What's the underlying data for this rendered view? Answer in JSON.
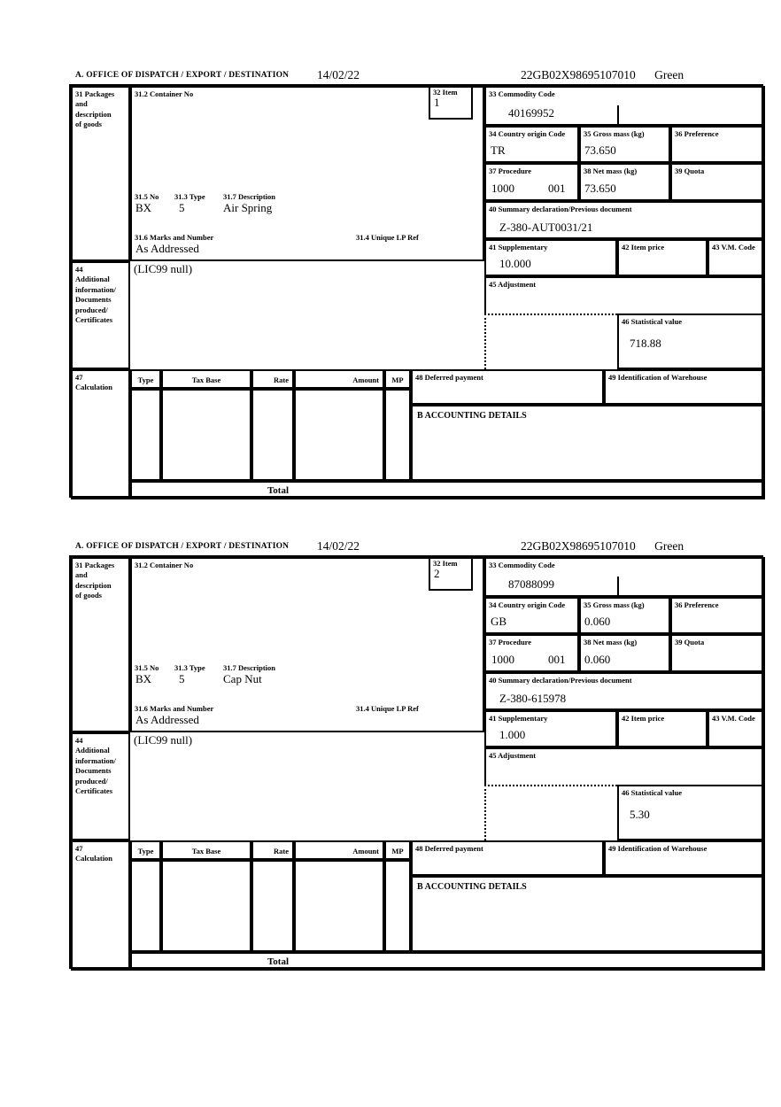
{
  "labels": {
    "office": "A. OFFICE OF DISPATCH / EXPORT / DESTINATION",
    "box31": "31 Packages\nand\ndescription\nof goods",
    "box31_2": "31.2 Container No",
    "box31_5": "31.5 No",
    "box31_3": "31.3 Type",
    "box31_7": "31.7 Description",
    "box31_6": "31.6 Marks and Number",
    "box31_4": "31.4 Unique LP Ref",
    "box32": "32 Item",
    "box33": "33 Commodity Code",
    "box34": "34 Country origin Code",
    "box35": "35 Gross mass (kg)",
    "box36": "36 Preference",
    "box37": "37 Procedure",
    "box38": "38 Net mass (kg)",
    "box39": "39 Quota",
    "box40": "40 Summary declaration/Previous document",
    "box41": "41 Supplementary",
    "box42": "42 Item price",
    "box43": "43 V.M. Code",
    "box44": "44\nAdditional\ninformation/\nDocuments\nproduced/\nCertificates",
    "box45": "45 Adjustment",
    "box46": "46 Statistical value",
    "box47": "47\nCalculation",
    "box48": "48 Deferred payment",
    "box49": "49 Identification of Warehouse",
    "accounting": "B ACCOUNTING DETAILS",
    "col_type": "Type",
    "col_tax_base": "Tax Base",
    "col_rate": "Rate",
    "col_amount": "Amount",
    "col_mp": "MP",
    "total": "Total"
  },
  "forms": [
    {
      "date": "14/02/22",
      "reference": "22GB02X98695107010",
      "status": "Green",
      "item_number": "1",
      "commodity_code": "40169952",
      "country_origin_code": "TR",
      "gross_mass": "73.650",
      "procedure": "1000",
      "procedure_extra": "001",
      "net_mass": "73.650",
      "package_no": "BX",
      "package_type": "5",
      "description": "Air Spring",
      "marks": "As Addressed",
      "summary_declaration": "Z-380-AUT0031/21",
      "supplementary": "10.000",
      "additional_info": "(LIC99 null)",
      "statistical_value": "718.88"
    },
    {
      "date": "14/02/22",
      "reference": "22GB02X98695107010",
      "status": "Green",
      "item_number": "2",
      "commodity_code": "87088099",
      "country_origin_code": "GB",
      "gross_mass": "0.060",
      "procedure": "1000",
      "procedure_extra": "001",
      "net_mass": "0.060",
      "package_no": "BX",
      "package_type": "5",
      "description": "Cap Nut",
      "marks": "As Addressed",
      "summary_declaration": "Z-380-615978",
      "supplementary": "1.000",
      "additional_info": "(LIC99 null)",
      "statistical_value": "5.30"
    }
  ]
}
